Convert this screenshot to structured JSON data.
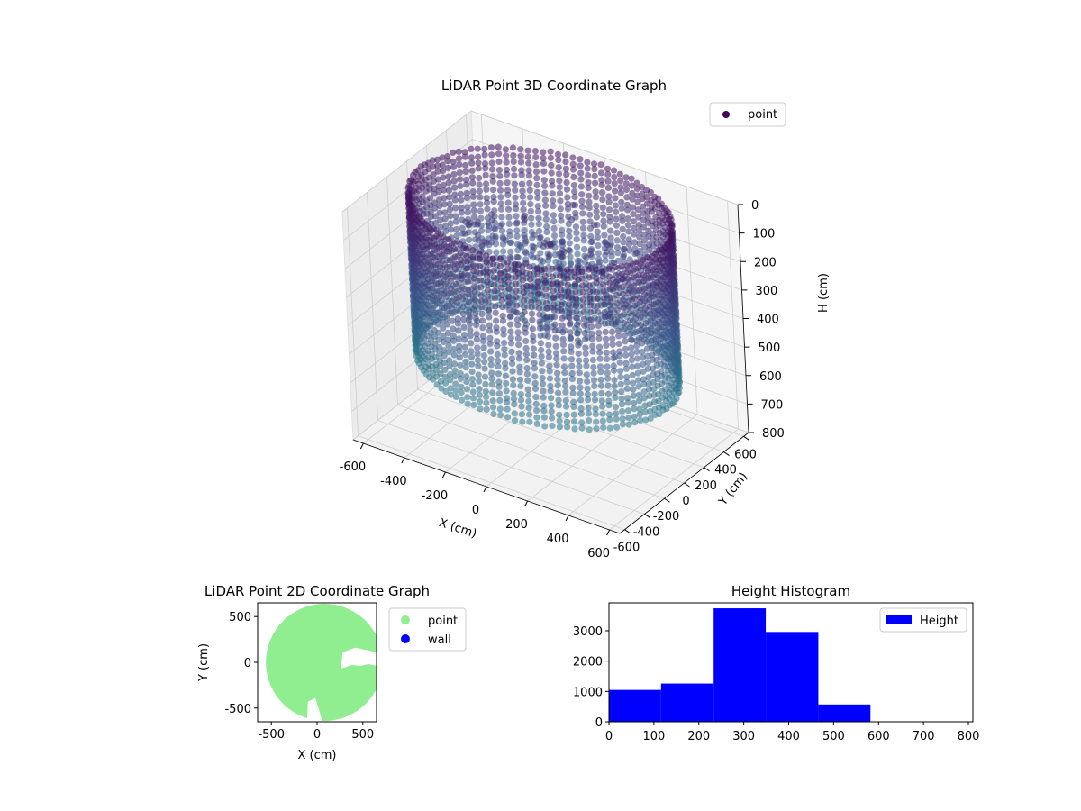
{
  "chart_data": [
    {
      "type": "scatter3d",
      "title": "LiDAR Point 3D Coordinate Graph",
      "xlabel": "X (cm)",
      "ylabel": "Y (cm)",
      "zlabel": "H (cm)",
      "xlim": [
        -650,
        650
      ],
      "ylim": [
        -650,
        650
      ],
      "zlim": [
        0,
        800
      ],
      "z_inverted": true,
      "xticks": [
        -600,
        -400,
        -200,
        0,
        200,
        400,
        600
      ],
      "yticks": [
        -600,
        -400,
        -200,
        0,
        200,
        400,
        600
      ],
      "zticks": [
        0,
        100,
        200,
        300,
        400,
        500,
        600,
        700,
        800
      ],
      "colormap": "viridis",
      "legend": [
        {
          "label": "point",
          "color": "#440154"
        }
      ],
      "legend_position": "top-right",
      "grid": true,
      "wall": {
        "radius_cm": 580,
        "height_cm_range": [
          0,
          560
        ]
      },
      "interior_blob": {
        "center_cm": [
          150,
          150
        ],
        "height_cm_range": [
          150,
          450
        ]
      }
    },
    {
      "type": "scatter",
      "title": "LiDAR Point 2D Coordinate Graph",
      "xlabel": "X (cm)",
      "ylabel": "Y (cm)",
      "xlim": [
        -650,
        650
      ],
      "ylim": [
        -650,
        650
      ],
      "xticks": [
        -500,
        0,
        500
      ],
      "yticks": [
        -500,
        0,
        500
      ],
      "series": [
        {
          "name": "point",
          "color": "#90ee90"
        },
        {
          "name": "wall",
          "color": "#0000ff"
        }
      ],
      "point_region": {
        "center_cm": [
          80,
          0
        ],
        "radius_cm": 640
      },
      "legend_position": "outside right"
    },
    {
      "type": "bar",
      "title": "Height Histogram",
      "xlabel": "",
      "ylabel": "",
      "bin_edges": [
        0,
        116,
        233,
        349,
        466,
        582,
        699,
        800
      ],
      "values": [
        1050,
        1260,
        3740,
        2960,
        570,
        0,
        0
      ],
      "xlim": [
        0,
        810
      ],
      "ylim": [
        0,
        3920
      ],
      "xticks": [
        0,
        100,
        200,
        300,
        400,
        500,
        600,
        700,
        800
      ],
      "yticks": [
        0,
        1000,
        2000,
        3000
      ],
      "series": [
        {
          "name": "Height",
          "color": "#0000ff"
        }
      ],
      "legend_position": "top-right"
    }
  ]
}
